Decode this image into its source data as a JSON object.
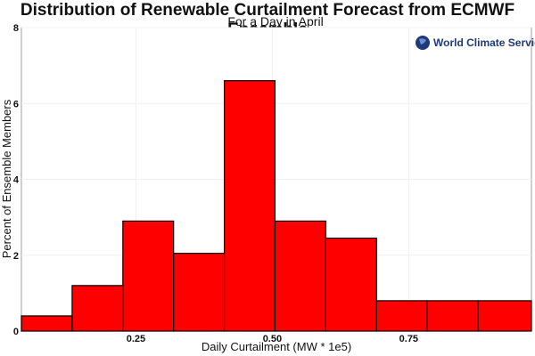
{
  "chart_data": {
    "type": "bar",
    "title": "Distribution of Renewable Curtailment Forecast from ECMWF Ensemble",
    "subtitle": "For a Day in April",
    "xlabel": "Daily Curtailment (MW * 1e5)",
    "ylabel": "Percent of Ensemble Members",
    "xlim": [
      0.04,
      0.975
    ],
    "ylim": [
      0,
      8
    ],
    "xticks": [
      0.25,
      0.5,
      0.75
    ],
    "xtick_labels": [
      "0.25",
      "0.50",
      "0.75"
    ],
    "yticks": [
      0,
      2,
      4,
      6,
      8
    ],
    "ytick_labels": [
      "0",
      "2",
      "4",
      "6",
      "8"
    ],
    "grid": true,
    "bar_color": "#ff0000",
    "bin_edges": [
      0.04,
      0.133,
      0.226,
      0.319,
      0.412,
      0.505,
      0.598,
      0.691,
      0.784,
      0.877,
      0.975
    ],
    "values": [
      0.4,
      1.2,
      2.9,
      2.05,
      6.6,
      2.9,
      2.45,
      0.8,
      0.8,
      0.8
    ]
  },
  "watermark": {
    "text": "World Climate Service"
  }
}
